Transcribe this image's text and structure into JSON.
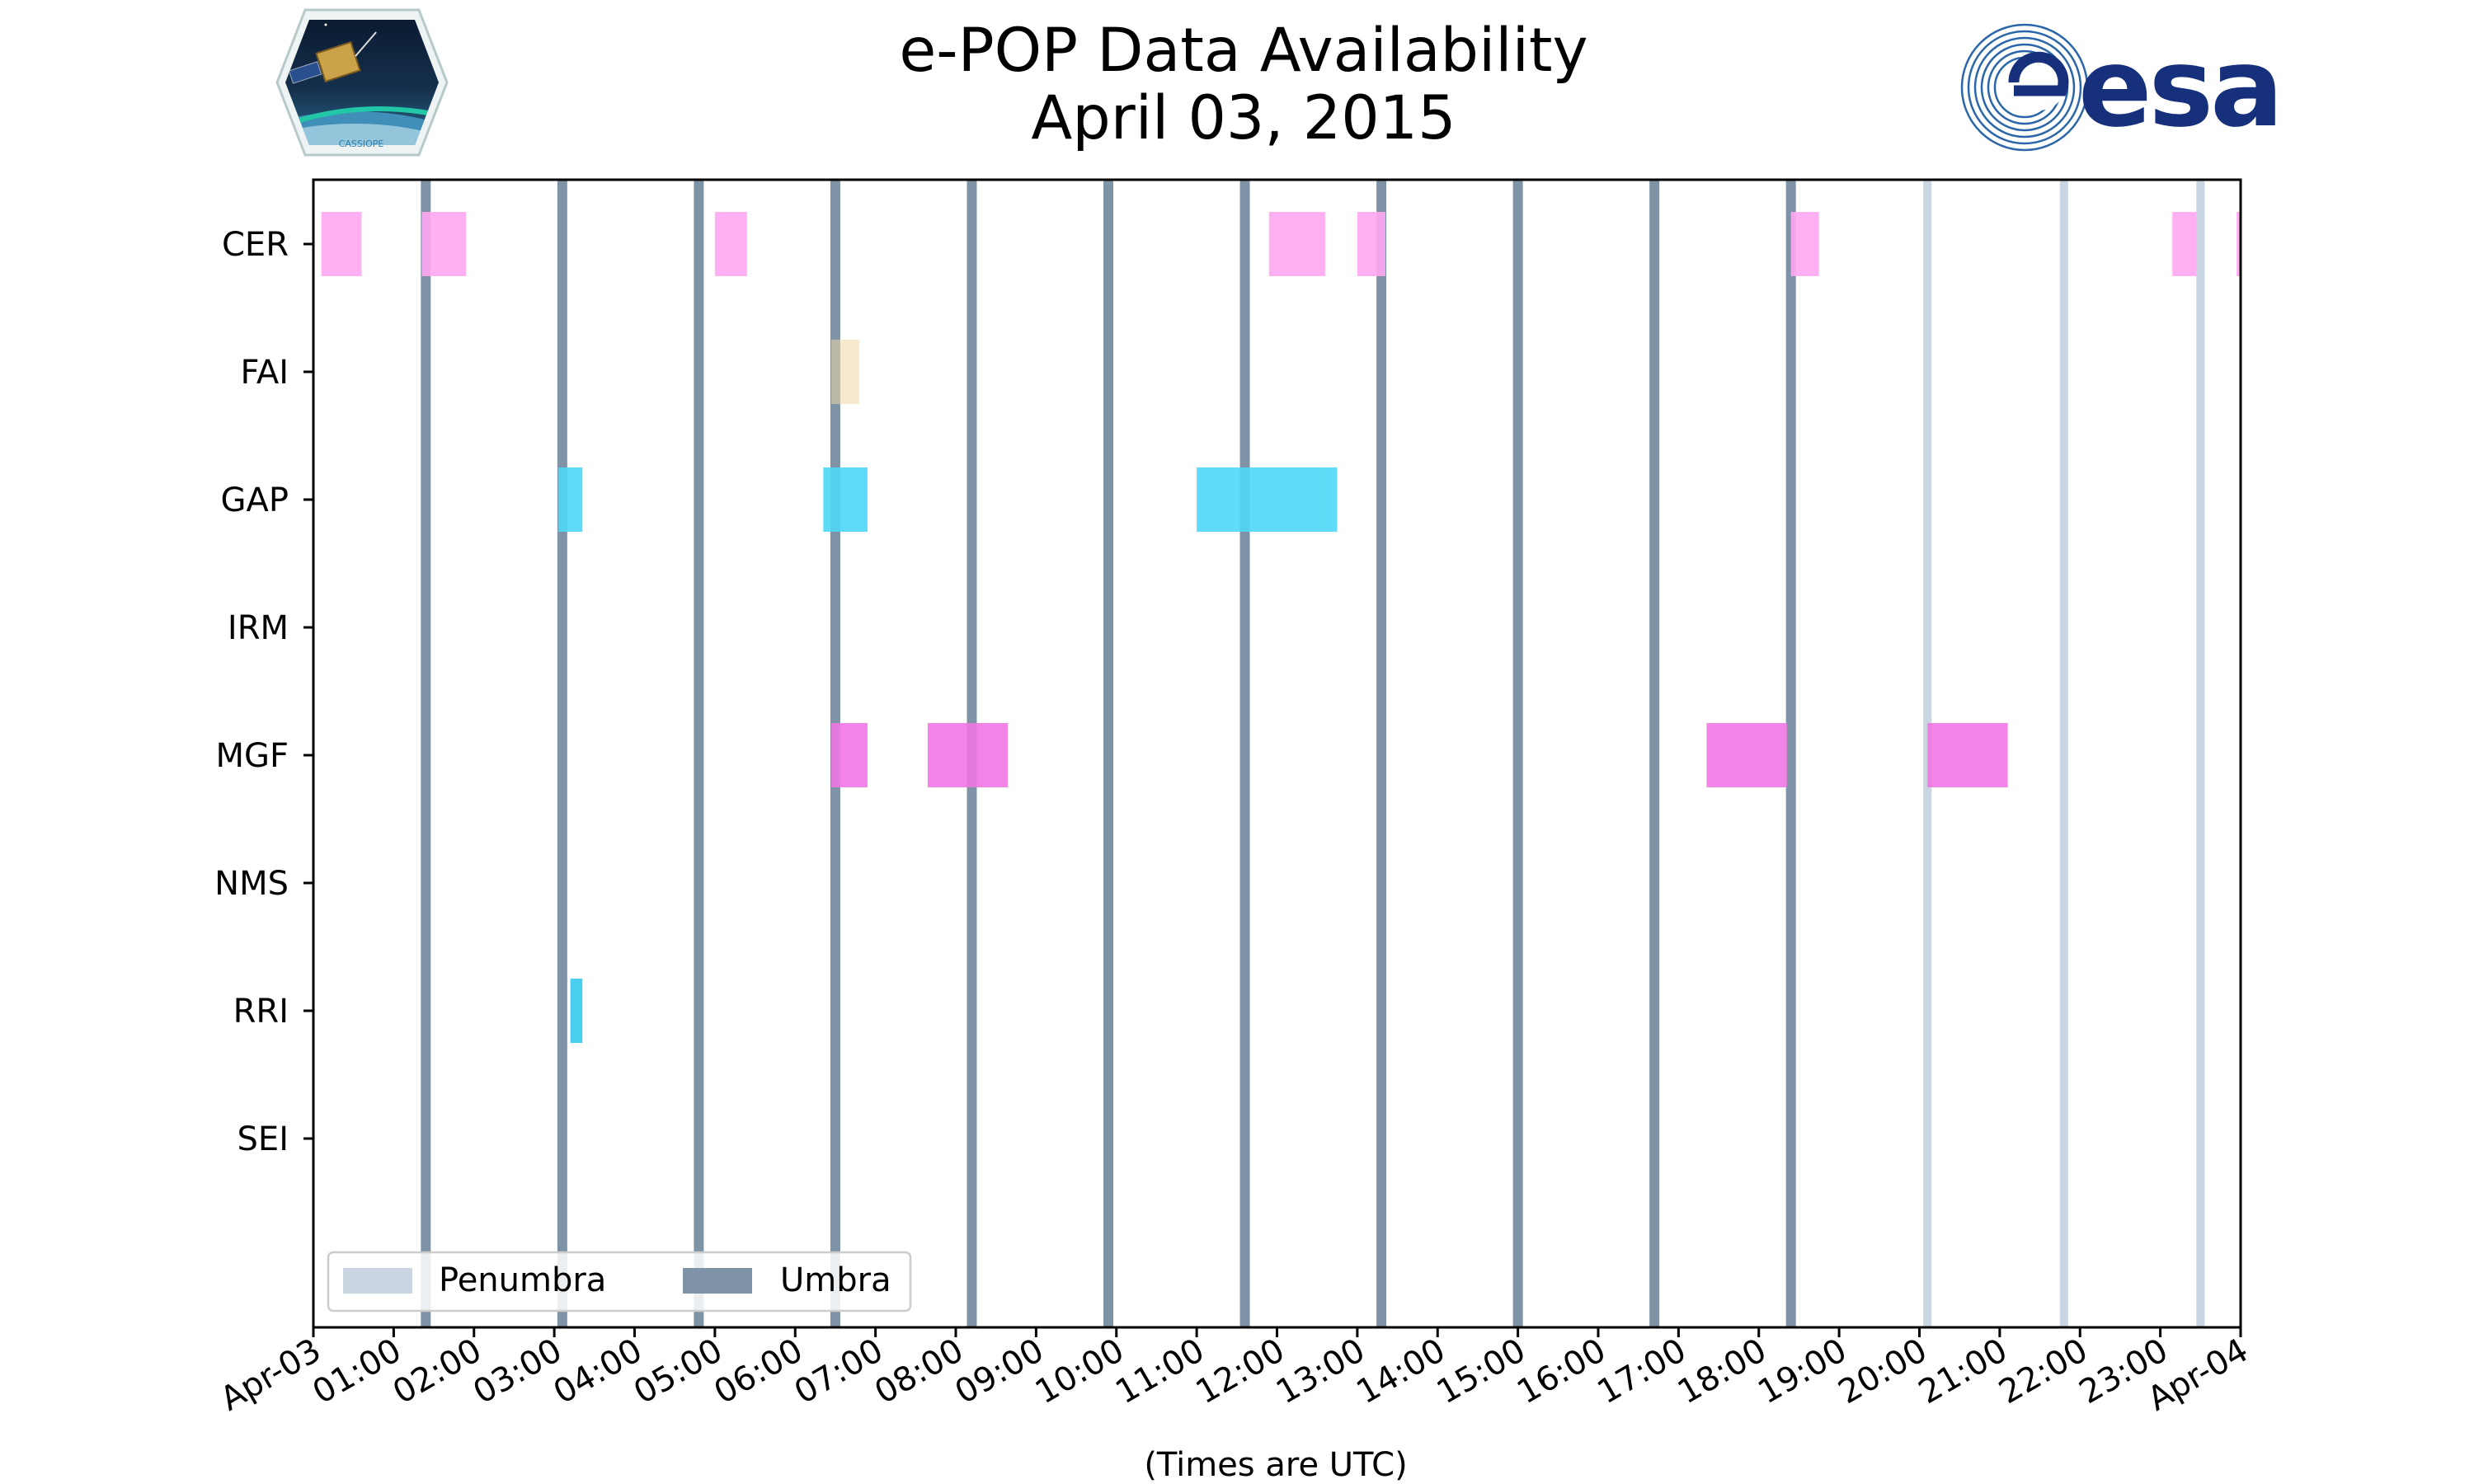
{
  "colors": {
    "umbra": "#7f93a7",
    "penumbra": "#c9d6e2",
    "cer": "#ffa7f2",
    "fai": "#f1d9a7",
    "gap": "#4dd8f6",
    "mgf": "#ef77e3",
    "rri": "#36c9ed",
    "esa_blue": "#17307b"
  },
  "logos": {
    "left_name": "CASSIOPE",
    "right_name": "esa"
  },
  "chart_data": {
    "type": "timeline",
    "title": "e-POP Data Availability",
    "subtitle": "April 03, 2015",
    "xlabel": "(Times are UTC)",
    "x_unit": "hours",
    "xlim": [
      0,
      24
    ],
    "x_ticks": [
      {
        "value": 0,
        "label": "Apr-03"
      },
      {
        "value": 1,
        "label": "01:00"
      },
      {
        "value": 2,
        "label": "02:00"
      },
      {
        "value": 3,
        "label": "03:00"
      },
      {
        "value": 4,
        "label": "04:00"
      },
      {
        "value": 5,
        "label": "05:00"
      },
      {
        "value": 6,
        "label": "06:00"
      },
      {
        "value": 7,
        "label": "07:00"
      },
      {
        "value": 8,
        "label": "08:00"
      },
      {
        "value": 9,
        "label": "09:00"
      },
      {
        "value": 10,
        "label": "10:00"
      },
      {
        "value": 11,
        "label": "11:00"
      },
      {
        "value": 12,
        "label": "12:00"
      },
      {
        "value": 13,
        "label": "13:00"
      },
      {
        "value": 14,
        "label": "14:00"
      },
      {
        "value": 15,
        "label": "15:00"
      },
      {
        "value": 16,
        "label": "16:00"
      },
      {
        "value": 17,
        "label": "17:00"
      },
      {
        "value": 18,
        "label": "18:00"
      },
      {
        "value": 19,
        "label": "19:00"
      },
      {
        "value": 20,
        "label": "20:00"
      },
      {
        "value": 21,
        "label": "21:00"
      },
      {
        "value": 22,
        "label": "22:00"
      },
      {
        "value": 23,
        "label": "23:00"
      },
      {
        "value": 24,
        "label": "Apr-04"
      }
    ],
    "instruments": [
      "CER",
      "FAI",
      "GAP",
      "IRM",
      "MGF",
      "NMS",
      "RRI",
      "SEI"
    ],
    "umbra_times": [
      1.4,
      3.1,
      4.8,
      6.5,
      8.2,
      9.9,
      11.6,
      13.3,
      15.0,
      16.7,
      18.4
    ],
    "penumbra_times": [
      18.4,
      20.1,
      21.8,
      23.5
    ],
    "intervals": [
      {
        "instrument": "CER",
        "start": 0.1,
        "end": 0.6,
        "color": "cer"
      },
      {
        "instrument": "CER",
        "start": 1.35,
        "end": 1.9,
        "color": "cer"
      },
      {
        "instrument": "CER",
        "start": 5.0,
        "end": 5.4,
        "color": "cer"
      },
      {
        "instrument": "CER",
        "start": 11.9,
        "end": 12.6,
        "color": "cer"
      },
      {
        "instrument": "CER",
        "start": 13.0,
        "end": 13.35,
        "color": "cer"
      },
      {
        "instrument": "CER",
        "start": 18.4,
        "end": 18.75,
        "color": "cer"
      },
      {
        "instrument": "CER",
        "start": 23.15,
        "end": 23.45,
        "color": "cer"
      },
      {
        "instrument": "CER",
        "start": 23.95,
        "end": 24.0,
        "color": "cer"
      },
      {
        "instrument": "FAI",
        "start": 6.45,
        "end": 6.8,
        "color": "fai"
      },
      {
        "instrument": "GAP",
        "start": 3.05,
        "end": 3.35,
        "color": "gap"
      },
      {
        "instrument": "GAP",
        "start": 6.35,
        "end": 6.9,
        "color": "gap"
      },
      {
        "instrument": "GAP",
        "start": 11.0,
        "end": 12.55,
        "color": "gap"
      },
      {
        "instrument": "GAP",
        "start": 12.55,
        "end": 12.75,
        "color": "gap"
      },
      {
        "instrument": "MGF",
        "start": 6.45,
        "end": 6.9,
        "color": "mgf"
      },
      {
        "instrument": "MGF",
        "start": 7.65,
        "end": 8.65,
        "color": "mgf"
      },
      {
        "instrument": "MGF",
        "start": 17.35,
        "end": 18.35,
        "color": "mgf"
      },
      {
        "instrument": "MGF",
        "start": 20.1,
        "end": 21.1,
        "color": "mgf"
      },
      {
        "instrument": "RRI",
        "start": 3.2,
        "end": 3.35,
        "color": "rri"
      }
    ],
    "legend": {
      "position": "lower-left",
      "entries": [
        {
          "label": "Penumbra",
          "color": "penumbra"
        },
        {
          "label": "Umbra",
          "color": "umbra"
        }
      ]
    }
  }
}
